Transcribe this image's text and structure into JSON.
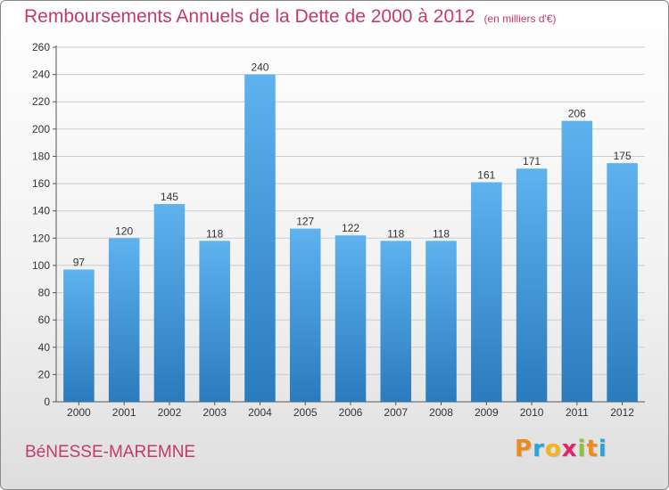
{
  "header": {
    "title": "Remboursements Annuels de la Dette de 2000 à 2012",
    "unit": "(en milliers d'€)"
  },
  "footer": {
    "commune": "BéNESSE-MAREMNE",
    "logo_letters": [
      "P",
      "r",
      "o",
      "x",
      "i",
      "t",
      "i"
    ],
    "logo_colors": [
      "#f08a1c",
      "#27a6de",
      "#f2b51b",
      "#e0266b",
      "#8bc13f",
      "#f08a1c",
      "#27a6de"
    ]
  },
  "colors": {
    "bar_top": "#5eb2ee",
    "bar_bottom": "#2a7bbd",
    "text_accent": "#c43a6a",
    "grid": "#cccccc"
  },
  "chart_data": {
    "type": "bar",
    "title": "Remboursements Annuels de la Dette de 2000 à 2012",
    "xlabel": "",
    "ylabel": "",
    "categories": [
      "2000",
      "2001",
      "2002",
      "2003",
      "2004",
      "2005",
      "2006",
      "2007",
      "2008",
      "2009",
      "2010",
      "2011",
      "2012"
    ],
    "values": [
      97,
      120,
      145,
      118,
      240,
      127,
      122,
      118,
      118,
      161,
      171,
      206,
      175
    ],
    "ylim": [
      0,
      260
    ],
    "yticks": [
      0,
      20,
      40,
      60,
      80,
      100,
      120,
      140,
      160,
      180,
      200,
      220,
      240,
      260
    ],
    "grid": true,
    "data_labels": true
  }
}
